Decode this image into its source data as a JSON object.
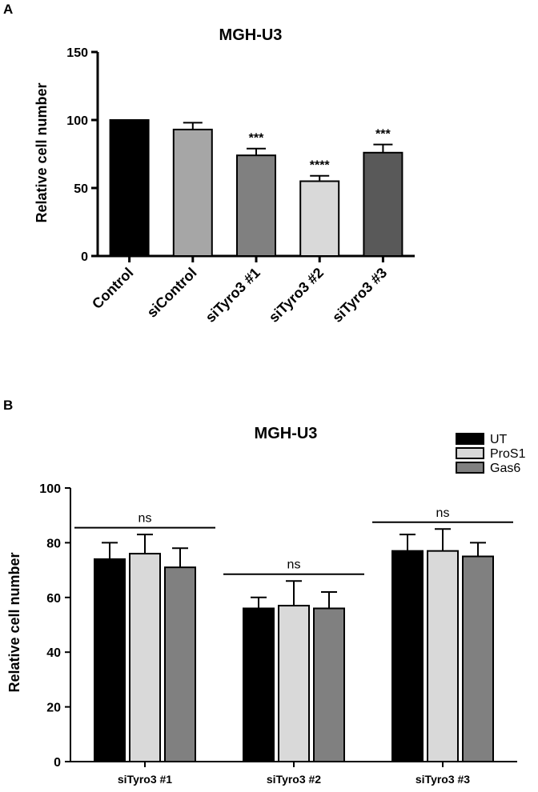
{
  "panel_a_letter": "A",
  "panel_b_letter": "B",
  "chart_data": [
    {
      "type": "bar",
      "title": "MGH-U3",
      "ylabel": "Relative cell number",
      "xlabel": "",
      "ylim": [
        0,
        150
      ],
      "yticks": [
        0,
        50,
        100,
        150
      ],
      "categories": [
        "Control",
        "siControl",
        "siTyro3 #1",
        "siTyro3 #2",
        "siTyro3 #3"
      ],
      "values": [
        100,
        93,
        74,
        55,
        76
      ],
      "errors": [
        0,
        5,
        5,
        4,
        6
      ],
      "bar_colors": [
        "#000000",
        "#a6a6a6",
        "#808080",
        "#d9d9d9",
        "#595959"
      ],
      "annotations": [
        "",
        "",
        "***",
        "****",
        "***"
      ]
    },
    {
      "type": "bar",
      "title": "MGH-U3",
      "ylabel": "Relative cell number",
      "xlabel": "",
      "ylim": [
        0,
        100
      ],
      "yticks": [
        0,
        20,
        40,
        60,
        80,
        100
      ],
      "categories": [
        "siTyro3 #1",
        "siTyro3 #2",
        "siTyro3 #3"
      ],
      "series": [
        {
          "name": "UT",
          "color": "#000000",
          "values": [
            74,
            56,
            77
          ],
          "errors": [
            6,
            4,
            6
          ]
        },
        {
          "name": "ProS1",
          "color": "#d9d9d9",
          "values": [
            76,
            57,
            77
          ],
          "errors": [
            7,
            9,
            8
          ]
        },
        {
          "name": "Gas6",
          "color": "#808080",
          "values": [
            71,
            56,
            75
          ],
          "errors": [
            7,
            6,
            5
          ]
        }
      ],
      "group_annotations": [
        "ns",
        "ns",
        "ns"
      ],
      "legend_position": "top-right"
    }
  ]
}
